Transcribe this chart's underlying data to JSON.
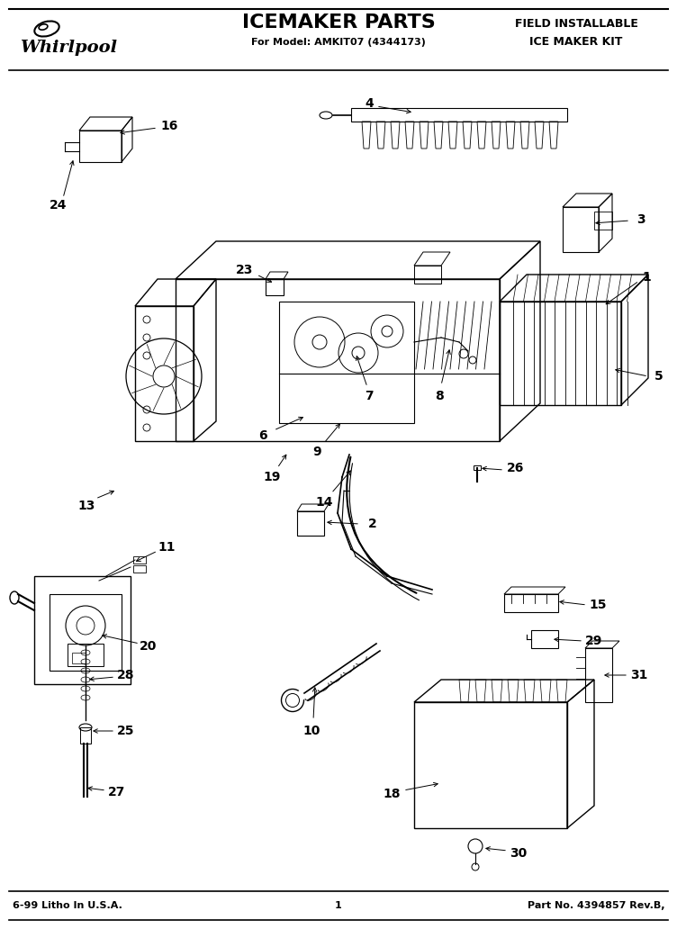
{
  "title": "ICEMAKER PARTS",
  "subtitle": "For Model: AMKIT07 (4344173)",
  "right_title_line1": "FIELD INSTALLABLE",
  "right_title_line2": "ICE MAKER KIT",
  "brand": "Whirlpool",
  "footer_left": "6-99 Litho In U.S.A.",
  "footer_center": "1",
  "footer_right": "Part No. 4394857 Rev.B,",
  "bg_color": "#ffffff",
  "lc": "#000000",
  "fig_w": 7.52,
  "fig_h": 10.32,
  "dpi": 100
}
